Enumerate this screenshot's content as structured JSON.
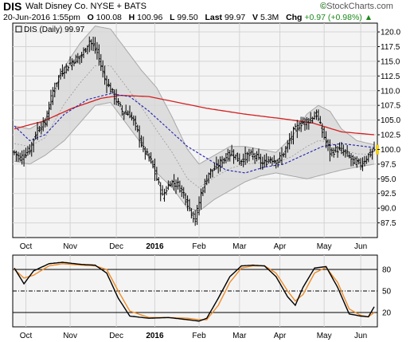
{
  "header": {
    "symbol": "DIS",
    "company": "Walt Disney Co.",
    "exchange": "NYSE + BATS",
    "brand": "StockCharts.com",
    "date": "20-Jun-2016 1:55pm",
    "open_label": "O",
    "open": "100.08",
    "high_label": "H",
    "high": "100.96",
    "low_label": "L",
    "low": "99.50",
    "last_label": "Last",
    "last": "99.97",
    "volume_label": "V",
    "volume": "5.3M",
    "change_label": "Chg",
    "change": "+0.97 (+0.98%)",
    "change_arrow": "triangle-up-icon"
  },
  "colors": {
    "ma_long": "#d42020",
    "ma_short": "#2020b0",
    "bands_fill": "#d8d8d8",
    "bands_edge": "#a8a8a8",
    "bar": "#000000",
    "stoch_k": "#000000",
    "stoch_d": "#f08c28",
    "last_marker": "#f0d020",
    "plot_bg": "#f4f4f4"
  },
  "chart_data": [
    {
      "type": "ohlc",
      "legend": "DIS (Daily) 99.97",
      "ylim": [
        85,
        121.5
      ],
      "yticks": [
        87.5,
        90.0,
        92.5,
        95.0,
        97.5,
        100.0,
        102.5,
        105.0,
        107.5,
        110.0,
        112.5,
        115.0,
        117.5,
        120.0
      ],
      "grid": true,
      "x_ticks": [
        {
          "label": "Oct",
          "bold": false
        },
        {
          "label": "Nov",
          "bold": false
        },
        {
          "label": "Dec",
          "bold": false
        },
        {
          "label": "2016",
          "bold": true
        },
        {
          "label": "Feb",
          "bold": false
        },
        {
          "label": "Mar",
          "bold": false
        },
        {
          "label": "Apr",
          "bold": false
        },
        {
          "label": "May",
          "bold": false
        },
        {
          "label": "Jun",
          "bold": false
        }
      ],
      "close_anchors": [
        {
          "day": 0,
          "close": 99.5
        },
        {
          "day": 3,
          "close": 98.5
        },
        {
          "day": 8,
          "close": 100.0
        },
        {
          "day": 12,
          "close": 103.5
        },
        {
          "day": 16,
          "close": 104.5
        },
        {
          "day": 20,
          "close": 110.0
        },
        {
          "day": 24,
          "close": 113.0
        },
        {
          "day": 30,
          "close": 115.0
        },
        {
          "day": 35,
          "close": 116.0
        },
        {
          "day": 39,
          "close": 118.5
        },
        {
          "day": 43,
          "close": 116.5
        },
        {
          "day": 47,
          "close": 112.0
        },
        {
          "day": 52,
          "close": 109.0
        },
        {
          "day": 56,
          "close": 106.5
        },
        {
          "day": 60,
          "close": 106.0
        },
        {
          "day": 63,
          "close": 104.0
        },
        {
          "day": 67,
          "close": 100.0
        },
        {
          "day": 71,
          "close": 98.0
        },
        {
          "day": 74,
          "close": 95.0
        },
        {
          "day": 77,
          "close": 92.0
        },
        {
          "day": 81,
          "close": 94.5
        },
        {
          "day": 85,
          "close": 94.0
        },
        {
          "day": 88,
          "close": 92.5
        },
        {
          "day": 91,
          "close": 90.0
        },
        {
          "day": 94,
          "close": 88.0
        },
        {
          "day": 97,
          "close": 92.5
        },
        {
          "day": 101,
          "close": 96.0
        },
        {
          "day": 105,
          "close": 97.0
        },
        {
          "day": 109,
          "close": 98.5
        },
        {
          "day": 113,
          "close": 99.5
        },
        {
          "day": 117,
          "close": 98.0
        },
        {
          "day": 121,
          "close": 99.0
        },
        {
          "day": 125,
          "close": 99.0
        },
        {
          "day": 129,
          "close": 97.5
        },
        {
          "day": 133,
          "close": 98.5
        },
        {
          "day": 137,
          "close": 98.0
        },
        {
          "day": 141,
          "close": 100.0
        },
        {
          "day": 145,
          "close": 103.0
        },
        {
          "day": 149,
          "close": 104.5
        },
        {
          "day": 153,
          "close": 105.0
        },
        {
          "day": 157,
          "close": 106.0
        },
        {
          "day": 160,
          "close": 103.0
        },
        {
          "day": 164,
          "close": 99.5
        },
        {
          "day": 168,
          "close": 100.0
        },
        {
          "day": 172,
          "close": 99.5
        },
        {
          "day": 176,
          "close": 98.0
        },
        {
          "day": 180,
          "close": 97.5
        },
        {
          "day": 184,
          "close": 99.0
        },
        {
          "day": 187,
          "close": 99.97
        }
      ],
      "ma_long_anchors": [
        {
          "day": 0,
          "value": 103.5
        },
        {
          "day": 15,
          "value": 104.8
        },
        {
          "day": 30,
          "value": 107.0
        },
        {
          "day": 45,
          "value": 108.7
        },
        {
          "day": 55,
          "value": 109.2
        },
        {
          "day": 70,
          "value": 109.0
        },
        {
          "day": 85,
          "value": 108.0
        },
        {
          "day": 100,
          "value": 107.0
        },
        {
          "day": 120,
          "value": 106.0
        },
        {
          "day": 140,
          "value": 105.2
        },
        {
          "day": 155,
          "value": 104.5
        },
        {
          "day": 170,
          "value": 103.0
        },
        {
          "day": 187,
          "value": 102.5
        }
      ],
      "ma_short_anchors": [
        {
          "day": 0,
          "value": 104.0
        },
        {
          "day": 8,
          "value": 101.5
        },
        {
          "day": 16,
          "value": 102.5
        },
        {
          "day": 26,
          "value": 106.0
        },
        {
          "day": 38,
          "value": 108.5
        },
        {
          "day": 50,
          "value": 109.5
        },
        {
          "day": 60,
          "value": 109.0
        },
        {
          "day": 70,
          "value": 106.5
        },
        {
          "day": 80,
          "value": 103.5
        },
        {
          "day": 90,
          "value": 100.5
        },
        {
          "day": 100,
          "value": 98.5
        },
        {
          "day": 110,
          "value": 96.5
        },
        {
          "day": 120,
          "value": 96.0
        },
        {
          "day": 130,
          "value": 97.0
        },
        {
          "day": 140,
          "value": 97.5
        },
        {
          "day": 150,
          "value": 99.0
        },
        {
          "day": 160,
          "value": 100.5
        },
        {
          "day": 170,
          "value": 101.0
        },
        {
          "day": 187,
          "value": 100.3
        }
      ],
      "band_upper_anchors": [
        {
          "day": 0,
          "value": 104.0
        },
        {
          "day": 8,
          "value": 103.5
        },
        {
          "day": 16,
          "value": 105.0
        },
        {
          "day": 26,
          "value": 114.0
        },
        {
          "day": 34,
          "value": 118.0
        },
        {
          "day": 42,
          "value": 121.0
        },
        {
          "day": 50,
          "value": 120.5
        },
        {
          "day": 58,
          "value": 117.0
        },
        {
          "day": 66,
          "value": 113.5
        },
        {
          "day": 74,
          "value": 110.5
        },
        {
          "day": 82,
          "value": 105.5
        },
        {
          "day": 90,
          "value": 100.0
        },
        {
          "day": 96,
          "value": 97.5
        },
        {
          "day": 104,
          "value": 99.0
        },
        {
          "day": 112,
          "value": 100.5
        },
        {
          "day": 120,
          "value": 100.5
        },
        {
          "day": 128,
          "value": 100.0
        },
        {
          "day": 136,
          "value": 99.5
        },
        {
          "day": 144,
          "value": 102.0
        },
        {
          "day": 152,
          "value": 106.0
        },
        {
          "day": 158,
          "value": 107.5
        },
        {
          "day": 164,
          "value": 106.5
        },
        {
          "day": 170,
          "value": 103.5
        },
        {
          "day": 178,
          "value": 101.5
        },
        {
          "day": 187,
          "value": 100.8
        }
      ],
      "band_lower_anchors": [
        {
          "day": 0,
          "value": 98.0
        },
        {
          "day": 8,
          "value": 97.5
        },
        {
          "day": 16,
          "value": 99.0
        },
        {
          "day": 26,
          "value": 101.5
        },
        {
          "day": 34,
          "value": 104.5
        },
        {
          "day": 42,
          "value": 107.5
        },
        {
          "day": 50,
          "value": 108.0
        },
        {
          "day": 58,
          "value": 104.5
        },
        {
          "day": 66,
          "value": 101.0
        },
        {
          "day": 74,
          "value": 96.0
        },
        {
          "day": 82,
          "value": 93.5
        },
        {
          "day": 90,
          "value": 90.0
        },
        {
          "day": 96,
          "value": 89.5
        },
        {
          "day": 104,
          "value": 91.5
        },
        {
          "day": 112,
          "value": 93.0
        },
        {
          "day": 120,
          "value": 94.5
        },
        {
          "day": 128,
          "value": 95.5
        },
        {
          "day": 136,
          "value": 96.0
        },
        {
          "day": 144,
          "value": 95.5
        },
        {
          "day": 152,
          "value": 95.0
        },
        {
          "day": 158,
          "value": 95.5
        },
        {
          "day": 164,
          "value": 96.0
        },
        {
          "day": 170,
          "value": 96.5
        },
        {
          "day": 178,
          "value": 97.0
        },
        {
          "day": 187,
          "value": 97.5
        }
      ],
      "last_marker_value": 99.97
    },
    {
      "type": "line",
      "indicator": "stochastic",
      "ylim": [
        0,
        100
      ],
      "yticks": [
        20,
        50,
        80
      ],
      "reference_lines": [
        {
          "value": 80,
          "style": "solid"
        },
        {
          "value": 50,
          "style": "dash-dot"
        },
        {
          "value": 20,
          "style": "solid"
        }
      ],
      "k_anchors": [
        {
          "day": 0,
          "value": 82
        },
        {
          "day": 5,
          "value": 60
        },
        {
          "day": 10,
          "value": 78
        },
        {
          "day": 18,
          "value": 88
        },
        {
          "day": 25,
          "value": 90
        },
        {
          "day": 35,
          "value": 87
        },
        {
          "day": 42,
          "value": 86
        },
        {
          "day": 48,
          "value": 75
        },
        {
          "day": 54,
          "value": 40
        },
        {
          "day": 60,
          "value": 15
        },
        {
          "day": 70,
          "value": 12
        },
        {
          "day": 80,
          "value": 13
        },
        {
          "day": 90,
          "value": 10
        },
        {
          "day": 96,
          "value": 8
        },
        {
          "day": 100,
          "value": 12
        },
        {
          "day": 106,
          "value": 40
        },
        {
          "day": 112,
          "value": 70
        },
        {
          "day": 118,
          "value": 85
        },
        {
          "day": 124,
          "value": 86
        },
        {
          "day": 130,
          "value": 85
        },
        {
          "day": 136,
          "value": 70
        },
        {
          "day": 142,
          "value": 42
        },
        {
          "day": 146,
          "value": 30
        },
        {
          "day": 150,
          "value": 55
        },
        {
          "day": 156,
          "value": 82
        },
        {
          "day": 162,
          "value": 84
        },
        {
          "day": 168,
          "value": 55
        },
        {
          "day": 174,
          "value": 18
        },
        {
          "day": 180,
          "value": 15
        },
        {
          "day": 184,
          "value": 14
        },
        {
          "day": 187,
          "value": 28
        }
      ],
      "d_anchors": [
        {
          "day": 0,
          "value": 80
        },
        {
          "day": 5,
          "value": 68
        },
        {
          "day": 10,
          "value": 72
        },
        {
          "day": 18,
          "value": 85
        },
        {
          "day": 25,
          "value": 88
        },
        {
          "day": 35,
          "value": 86
        },
        {
          "day": 42,
          "value": 85
        },
        {
          "day": 48,
          "value": 80
        },
        {
          "day": 54,
          "value": 50
        },
        {
          "day": 60,
          "value": 22
        },
        {
          "day": 70,
          "value": 13
        },
        {
          "day": 80,
          "value": 13
        },
        {
          "day": 90,
          "value": 12
        },
        {
          "day": 96,
          "value": 10
        },
        {
          "day": 100,
          "value": 10
        },
        {
          "day": 106,
          "value": 30
        },
        {
          "day": 112,
          "value": 62
        },
        {
          "day": 118,
          "value": 82
        },
        {
          "day": 124,
          "value": 85
        },
        {
          "day": 130,
          "value": 85
        },
        {
          "day": 136,
          "value": 75
        },
        {
          "day": 142,
          "value": 50
        },
        {
          "day": 146,
          "value": 36
        },
        {
          "day": 150,
          "value": 45
        },
        {
          "day": 156,
          "value": 75
        },
        {
          "day": 162,
          "value": 83
        },
        {
          "day": 168,
          "value": 62
        },
        {
          "day": 174,
          "value": 25
        },
        {
          "day": 180,
          "value": 16
        },
        {
          "day": 184,
          "value": 14
        },
        {
          "day": 187,
          "value": 20
        }
      ]
    }
  ]
}
